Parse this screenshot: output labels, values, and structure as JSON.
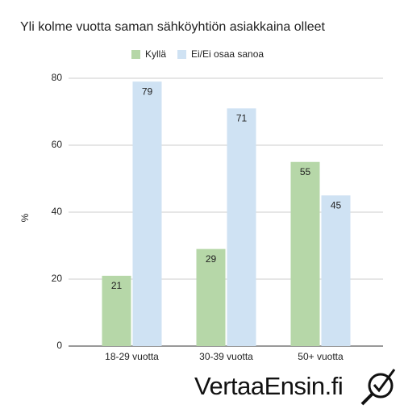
{
  "chart_data": {
    "type": "bar",
    "title": "Yli kolme vuotta saman sähköyhtiön asiakkaina olleet",
    "ylabel": "%",
    "categories": [
      "18-29 vuotta",
      "30-39 vuotta",
      "50+ vuotta"
    ],
    "series": [
      {
        "name": "Kyllä",
        "color": "#b6d7a8",
        "values": [
          21,
          29,
          55
        ]
      },
      {
        "name": "Ei/Ei osaa sanoa",
        "color": "#cfe2f3",
        "values": [
          79,
          71,
          45
        ]
      }
    ],
    "ylim": [
      0,
      80
    ],
    "yticks": [
      0,
      20,
      40,
      60,
      80
    ],
    "grid": true,
    "legend": "top"
  },
  "logo": "VertaaEnsin.fi"
}
